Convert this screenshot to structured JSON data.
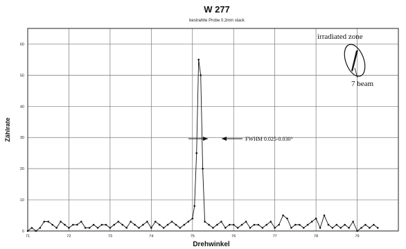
{
  "chart_data": {
    "type": "line",
    "title": "W 277",
    "subtitle": "bestrahlte Probe 0.2mm stack",
    "xlabel": "Drehwinkel",
    "ylabel": "Zählrate",
    "xlim": [
      71,
      80
    ],
    "ylim": [
      0,
      65
    ],
    "x_ticks": [
      "71",
      "72",
      "73",
      "74",
      "75",
      "76",
      "77",
      "78",
      "79"
    ],
    "y_ticks": [
      "0",
      "10",
      "20",
      "30",
      "40",
      "50",
      "60"
    ],
    "grid": true,
    "marker": "dot",
    "annotations": {
      "fwhm": "FWHM  0.025-0.030°",
      "zone_label": "irradiated zone",
      "beam_label": "7 beam"
    },
    "series": [
      {
        "x": [
          71.0,
          71.1,
          71.2,
          71.3,
          71.4,
          71.5,
          71.6,
          71.7,
          71.8,
          71.9,
          72.0,
          72.1,
          72.2,
          72.3,
          72.4,
          72.5,
          72.6,
          72.7,
          72.8,
          72.9,
          73.0,
          73.1,
          73.2,
          73.3,
          73.4,
          73.5,
          73.6,
          73.7,
          73.8,
          73.9,
          74.0,
          74.1,
          74.2,
          74.3,
          74.4,
          74.5,
          74.6,
          74.7,
          74.8,
          74.9,
          75.0,
          75.05,
          75.1,
          75.15,
          75.2,
          75.25,
          75.3,
          75.4,
          75.5,
          75.6,
          75.7,
          75.8,
          75.9,
          76.0,
          76.1,
          76.2,
          76.3,
          76.4,
          76.5,
          76.6,
          76.7,
          76.8,
          76.9,
          77.0,
          77.1,
          77.2,
          77.3,
          77.4,
          77.5,
          77.6,
          77.7,
          77.8,
          77.9,
          78.0,
          78.1,
          78.2,
          78.3,
          78.4,
          78.5,
          78.6,
          78.7,
          78.8,
          78.9,
          79.0,
          79.1,
          79.2,
          79.3,
          79.4,
          79.5
        ],
        "y": [
          0,
          1,
          0,
          1,
          3,
          3,
          2,
          1,
          3,
          2,
          1,
          2,
          2,
          3,
          1,
          1,
          2,
          1,
          2,
          2,
          1,
          2,
          3,
          2,
          1,
          3,
          2,
          1,
          2,
          3,
          1,
          3,
          2,
          1,
          2,
          3,
          2,
          1,
          2,
          3,
          4,
          8,
          25,
          55,
          50,
          20,
          3,
          2,
          1,
          2,
          3,
          1,
          2,
          2,
          1,
          2,
          3,
          1,
          2,
          2,
          1,
          2,
          3,
          1,
          2,
          5,
          4,
          1,
          2,
          2,
          1,
          2,
          3,
          4,
          1,
          5,
          2,
          1,
          2,
          1,
          2,
          1,
          3,
          0,
          1,
          2,
          1,
          2,
          1
        ]
      }
    ]
  }
}
